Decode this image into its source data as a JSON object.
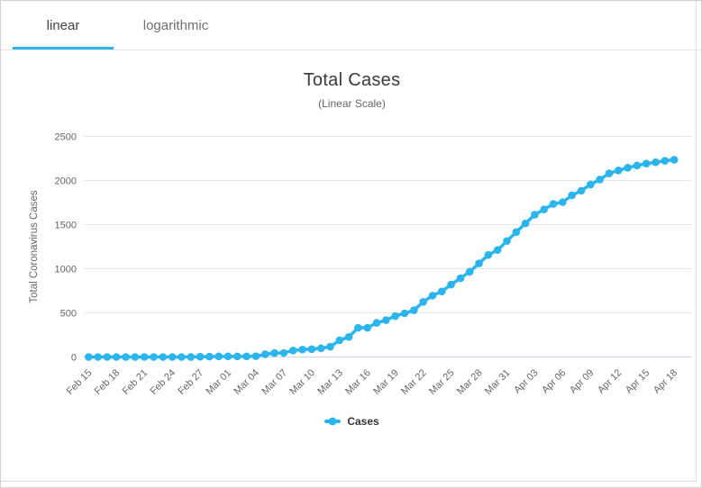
{
  "tabs": {
    "linear": "linear",
    "logarithmic": "logarithmic"
  },
  "colors": {
    "accent": "#2bb5ec",
    "grid_line": "#e6e6e6",
    "axis_line": "#ccd6eb",
    "tick_text": "#666666",
    "title_text": "#3b3b3b"
  },
  "chart_data": {
    "type": "line",
    "title": "Total Cases",
    "subtitle": "(Linear Scale)",
    "ylabel": "Total Coronavirus Cases",
    "xlabel": "",
    "legend_label": "Cases",
    "legend_position": "bottom-center",
    "grid": "horizontal",
    "ylim": [
      0,
      2500
    ],
    "yticks": [
      0,
      500,
      1000,
      1500,
      2000,
      2500
    ],
    "xtick_interval": 3,
    "categories": [
      "Feb 15",
      "Feb 16",
      "Feb 17",
      "Feb 18",
      "Feb 19",
      "Feb 20",
      "Feb 21",
      "Feb 22",
      "Feb 23",
      "Feb 24",
      "Feb 25",
      "Feb 26",
      "Feb 27",
      "Feb 28",
      "Feb 29",
      "Mar 01",
      "Mar 02",
      "Mar 03",
      "Mar 04",
      "Mar 05",
      "Mar 06",
      "Mar 07",
      "Mar 08",
      "Mar 09",
      "Mar 10",
      "Mar 11",
      "Mar 12",
      "Mar 13",
      "Mar 14",
      "Mar 15",
      "Mar 16",
      "Mar 17",
      "Mar 18",
      "Mar 19",
      "Mar 20",
      "Mar 21",
      "Mar 22",
      "Mar 23",
      "Mar 24",
      "Mar 25",
      "Mar 26",
      "Mar 27",
      "Mar 28",
      "Mar 29",
      "Mar 30",
      "Mar 31",
      "Apr 01",
      "Apr 02",
      "Apr 03",
      "Apr 04",
      "Apr 05",
      "Apr 06",
      "Apr 07",
      "Apr 08",
      "Apr 09",
      "Apr 10",
      "Apr 11",
      "Apr 12",
      "Apr 13",
      "Apr 14",
      "Apr 15",
      "Apr 16",
      "Apr 17",
      "Apr 18"
    ],
    "series": [
      {
        "name": "Cases",
        "values": [
          0,
          0,
          0,
          0,
          0,
          0,
          0,
          0,
          0,
          0,
          0,
          1,
          3,
          4,
          7,
          7,
          7,
          7,
          9,
          31,
          45,
          46,
          73,
          84,
          89,
          99,
          117,
          190,
          228,
          331,
          331,
          387,
          418,
          464,
          495,
          530,
          624,
          695,
          743,
          821,
          892,
          966,
          1061,
          1156,
          1212,
          1314,
          1415,
          1514,
          1613,
          1673,
          1735,
          1755,
          1832,
          1884,
          1955,
          2011,
          2081,
          2114,
          2145,
          2170,
          2192,
          2207,
          2224,
          2235
        ]
      }
    ]
  }
}
